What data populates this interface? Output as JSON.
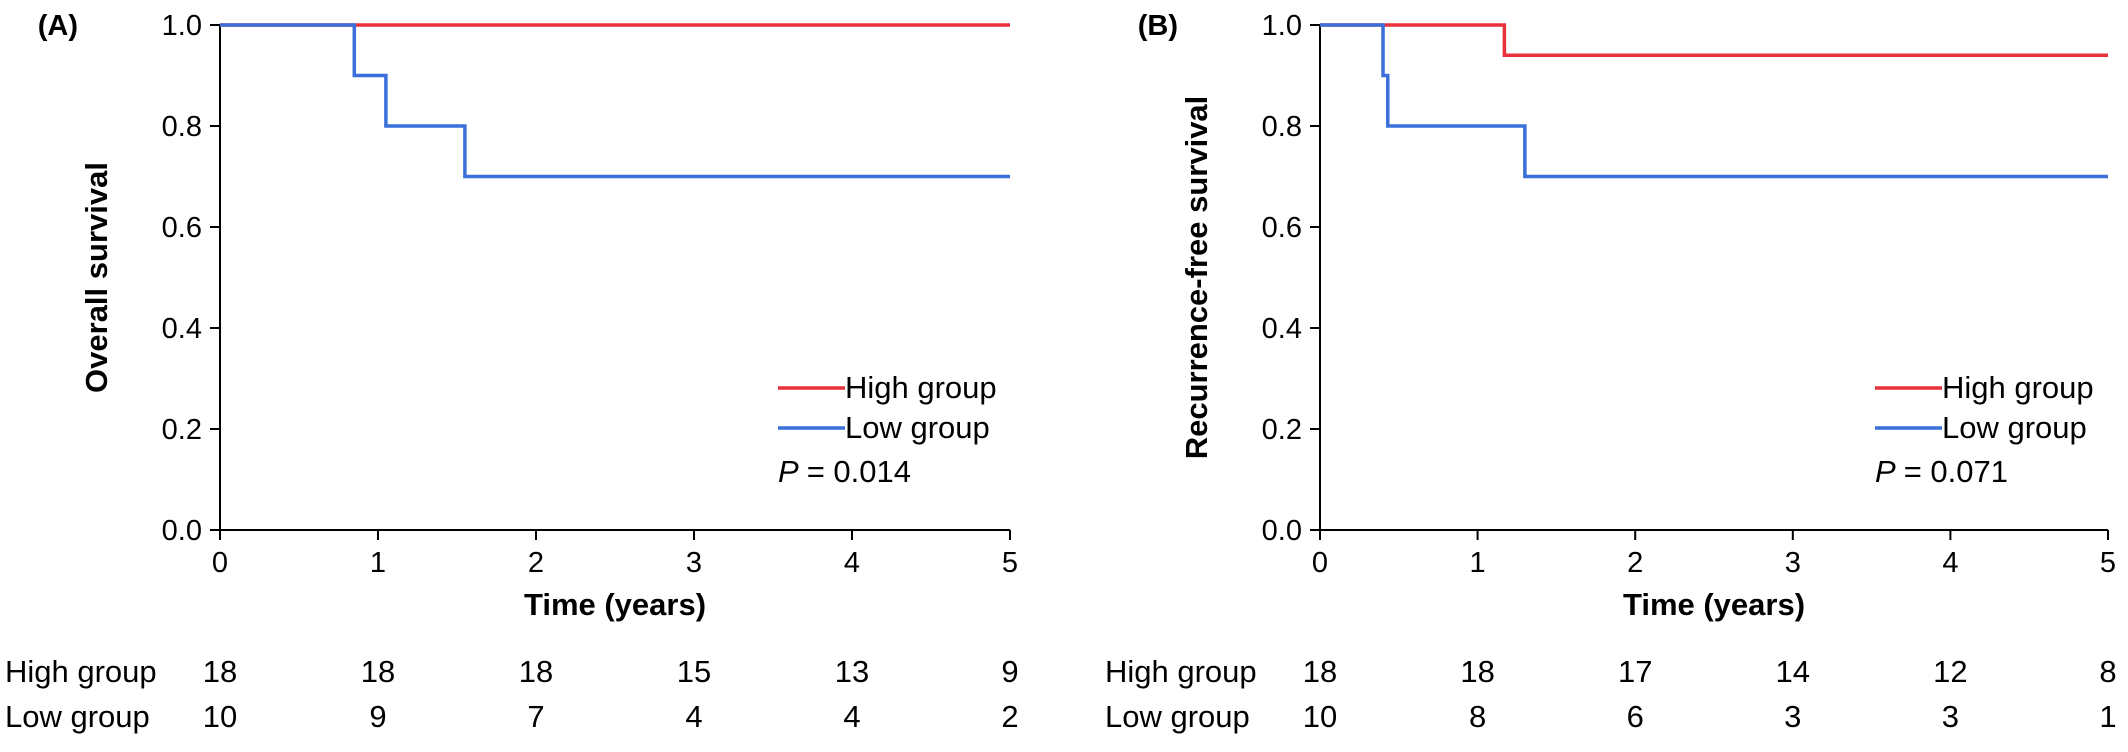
{
  "chart_data": [
    {
      "type": "line",
      "panel_label": "(A)",
      "xlabel": "Time (years)",
      "ylabel": "Overall survival",
      "xlim": [
        0,
        5
      ],
      "ylim": [
        0,
        1
      ],
      "x_ticks": [
        "0",
        "1",
        "2",
        "3",
        "4",
        "5"
      ],
      "y_ticks": [
        "0.0",
        "0.2",
        "0.4",
        "0.6",
        "0.8",
        "1.0"
      ],
      "series": [
        {
          "name": "High group",
          "color": "#e8313b",
          "steps": [
            [
              0,
              1.0
            ],
            [
              5,
              1.0
            ]
          ]
        },
        {
          "name": "Low group",
          "color": "#3b6fd9",
          "steps": [
            [
              0,
              1.0
            ],
            [
              0.85,
              0.9
            ],
            [
              1.05,
              0.8
            ],
            [
              1.55,
              0.7
            ],
            [
              5,
              0.7
            ]
          ]
        }
      ],
      "p_label": "P",
      "p_value": "= 0.014",
      "legend_position": "bottom-right",
      "risk_table": {
        "times": [
          0,
          1,
          2,
          3,
          4,
          5
        ],
        "rows": [
          {
            "label": "High group",
            "values": [
              "18",
              "18",
              "18",
              "15",
              "13",
              "9"
            ]
          },
          {
            "label": "Low group",
            "values": [
              "10",
              "9",
              "7",
              "4",
              "4",
              "2"
            ]
          }
        ]
      }
    },
    {
      "type": "line",
      "panel_label": "(B)",
      "xlabel": "Time (years)",
      "ylabel": "Recurrence-free survival",
      "xlim": [
        0,
        5
      ],
      "ylim": [
        0,
        1
      ],
      "x_ticks": [
        "0",
        "1",
        "2",
        "3",
        "4",
        "5"
      ],
      "y_ticks": [
        "0.0",
        "0.2",
        "0.4",
        "0.6",
        "0.8",
        "1.0"
      ],
      "series": [
        {
          "name": "High group",
          "color": "#e8313b",
          "steps": [
            [
              0,
              1.0
            ],
            [
              1.17,
              0.94
            ],
            [
              5,
              0.94
            ]
          ]
        },
        {
          "name": "Low group",
          "color": "#3b6fd9",
          "steps": [
            [
              0,
              1.0
            ],
            [
              0.4,
              0.9
            ],
            [
              0.43,
              0.8
            ],
            [
              1.3,
              0.7
            ],
            [
              5,
              0.7
            ]
          ]
        }
      ],
      "p_label": "P",
      "p_value": "= 0.071",
      "legend_position": "bottom-right",
      "risk_table": {
        "times": [
          0,
          1,
          2,
          3,
          4,
          5
        ],
        "rows": [
          {
            "label": "High group",
            "values": [
              "18",
              "18",
              "17",
              "14",
              "12",
              "8"
            ]
          },
          {
            "label": "Low group",
            "values": [
              "10",
              "8",
              "6",
              "3",
              "3",
              "1"
            ]
          }
        ]
      }
    }
  ]
}
